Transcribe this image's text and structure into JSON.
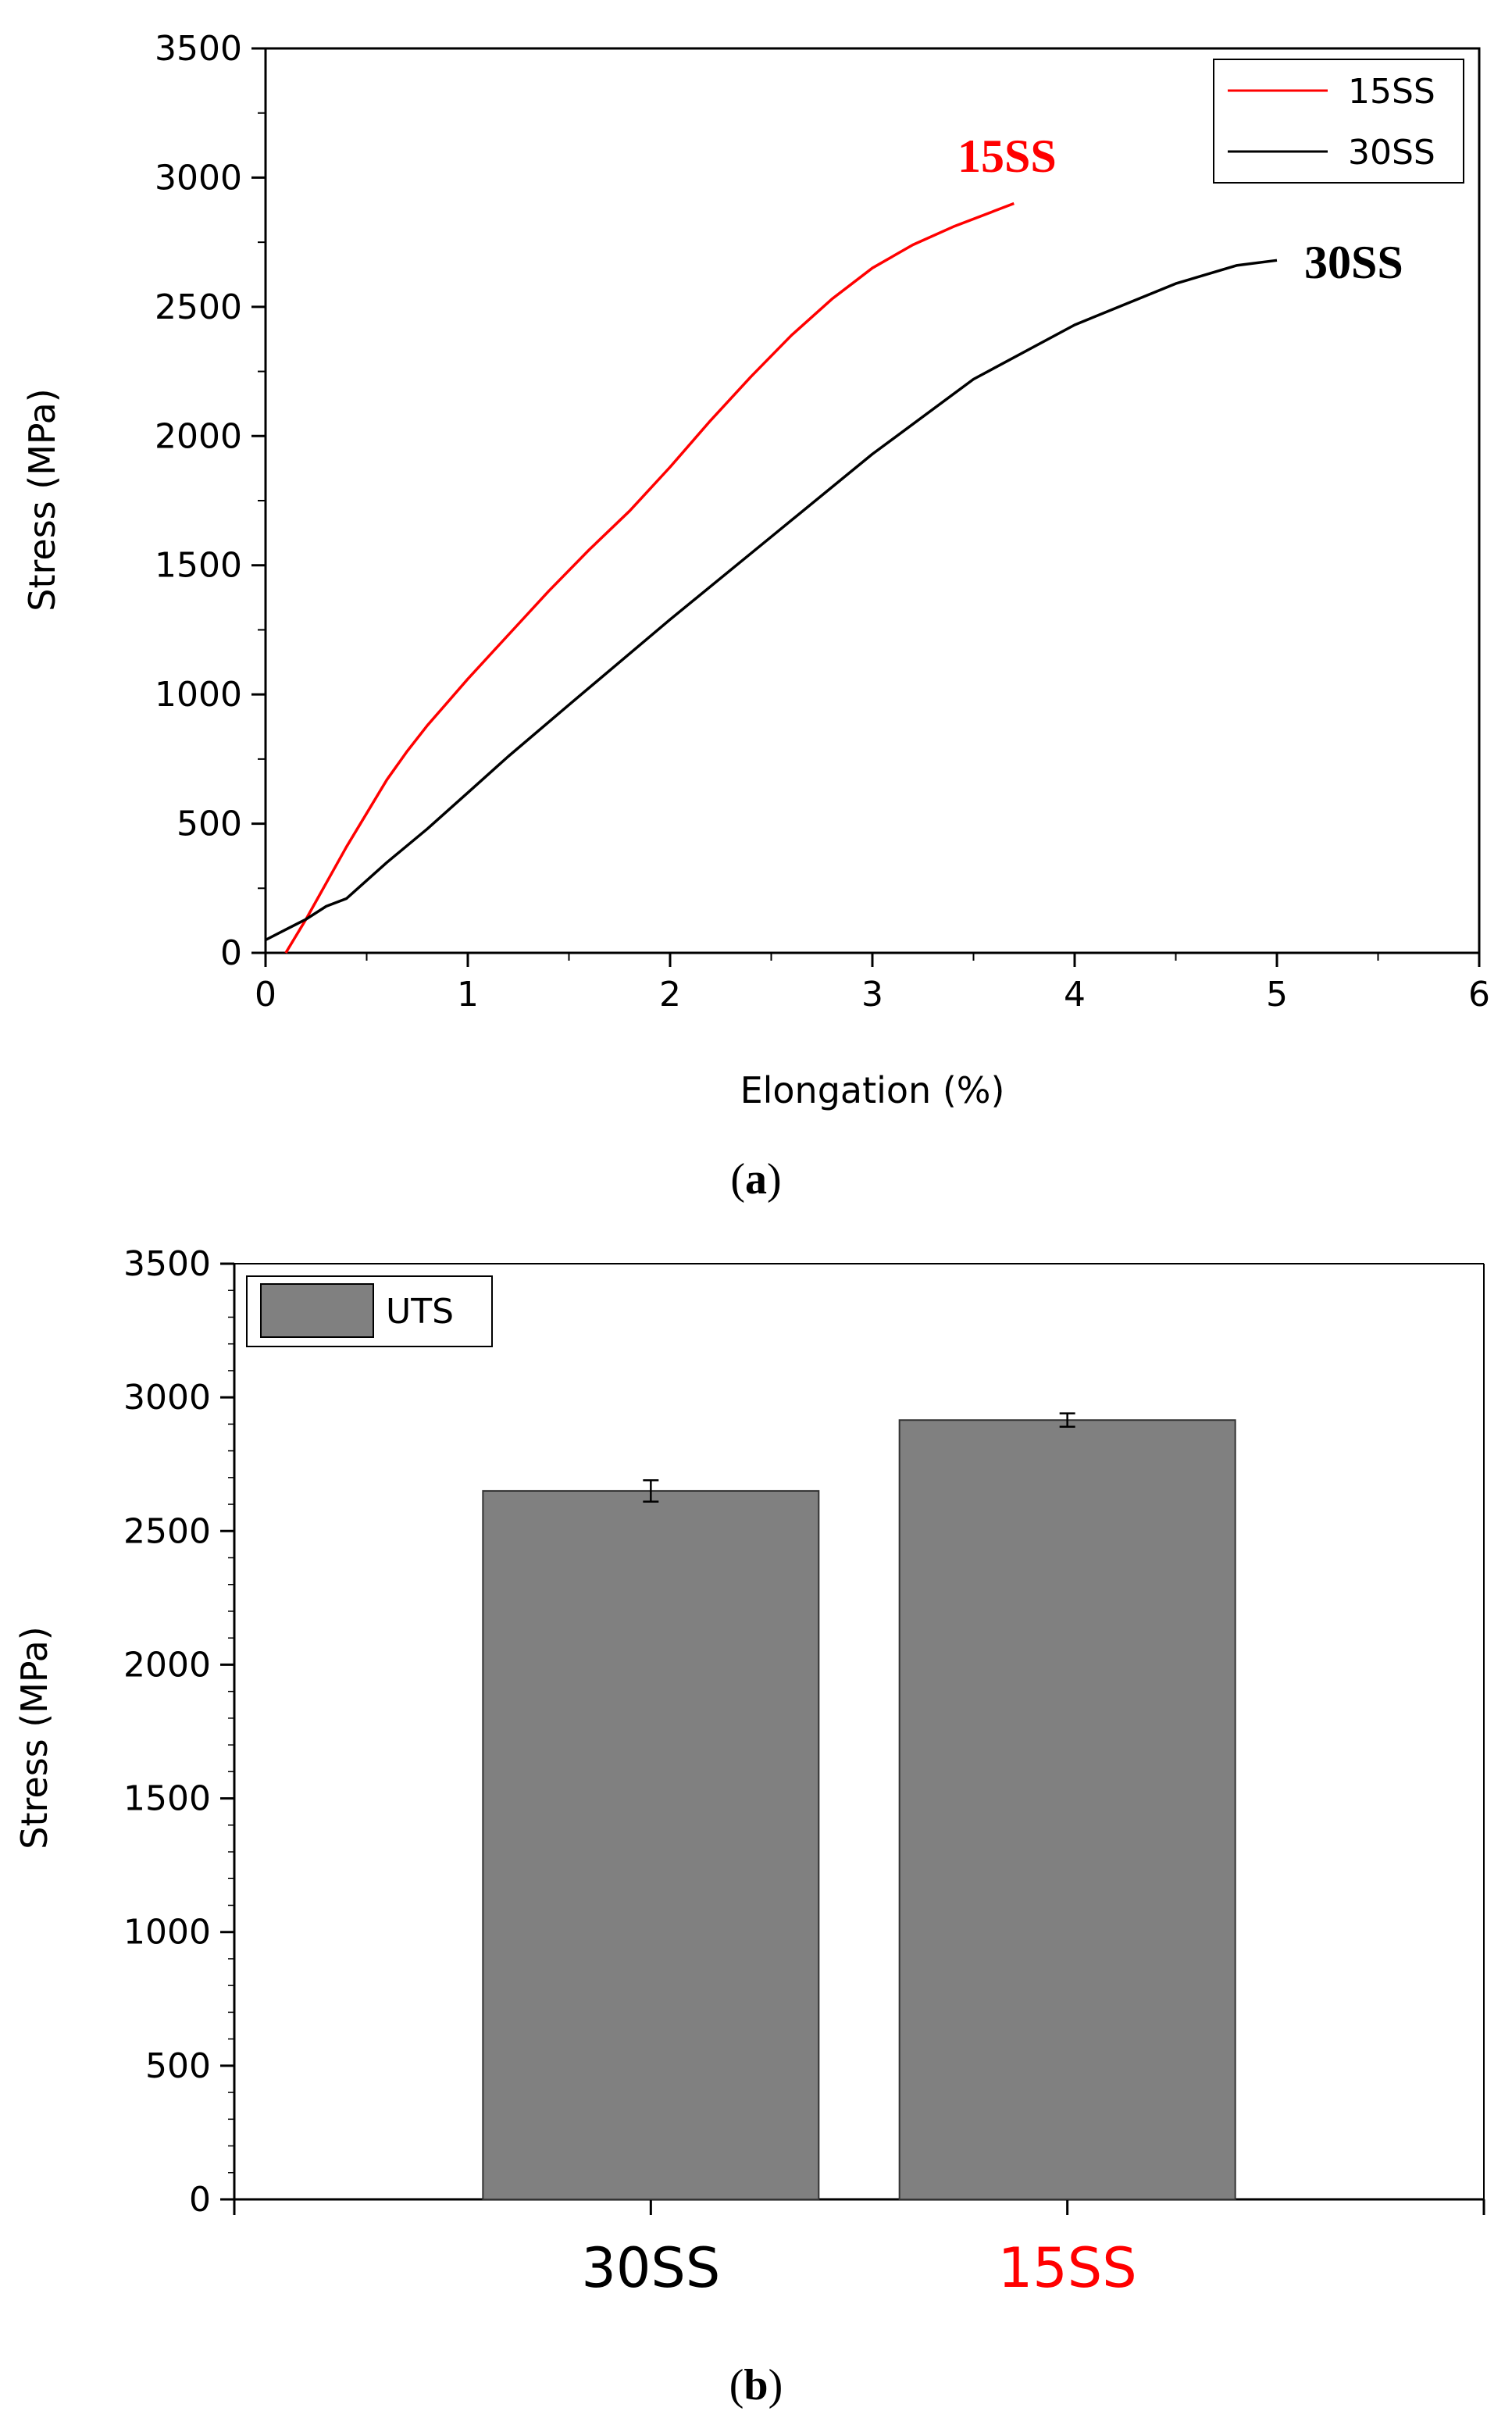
{
  "chart_data": [
    {
      "panel": "a",
      "type": "line",
      "xlabel": "Elongation (%)",
      "ylabel": "Stress (MPa)",
      "xlim": [
        0,
        6
      ],
      "ylim": [
        0,
        3500
      ],
      "x_ticks": [
        "0",
        "1",
        "2",
        "3",
        "4",
        "5",
        "6"
      ],
      "y_ticks": [
        "0",
        "500",
        "1000",
        "1500",
        "2000",
        "2500",
        "3000",
        "3500"
      ],
      "legend_position": "top-right",
      "series": [
        {
          "name": "15SS",
          "color": "#ff0000",
          "x": [
            0.1,
            0.2,
            0.3,
            0.4,
            0.5,
            0.6,
            0.7,
            0.8,
            0.9,
            1.0,
            1.2,
            1.4,
            1.6,
            1.8,
            2.0,
            2.2,
            2.4,
            2.6,
            2.8,
            3.0,
            3.2,
            3.4,
            3.6,
            3.7
          ],
          "y": [
            0,
            130,
            270,
            410,
            540,
            670,
            780,
            880,
            970,
            1060,
            1230,
            1400,
            1560,
            1710,
            1880,
            2060,
            2230,
            2390,
            2530,
            2650,
            2740,
            2810,
            2870,
            2900
          ]
        },
        {
          "name": "30SS",
          "color": "#000000",
          "x": [
            0,
            0.1,
            0.2,
            0.3,
            0.4,
            0.6,
            0.8,
            1.0,
            1.2,
            1.5,
            2.0,
            2.5,
            3.0,
            3.5,
            4.0,
            4.5,
            4.8,
            5.0
          ],
          "y": [
            50,
            90,
            130,
            180,
            210,
            350,
            480,
            620,
            760,
            960,
            1290,
            1610,
            1930,
            2220,
            2430,
            2590,
            2660,
            2680
          ]
        }
      ],
      "annotations": [
        {
          "text": "15SS",
          "color": "#ff0000"
        },
        {
          "text": "30SS",
          "color": "#000000"
        }
      ],
      "caption_label": "a"
    },
    {
      "panel": "b",
      "type": "bar",
      "ylabel": "Stress (MPa)",
      "ylim": [
        0,
        3500
      ],
      "y_ticks": [
        "0",
        "500",
        "1000",
        "1500",
        "2000",
        "2500",
        "3000",
        "3500"
      ],
      "categories": [
        "30SS",
        "15SS"
      ],
      "category_colors": [
        "#000000",
        "#ff0000"
      ],
      "bar_color": "#808080",
      "series": [
        {
          "name": "UTS",
          "values": [
            2650,
            2915
          ],
          "errors": [
            40,
            25
          ]
        }
      ],
      "legend_position": "top-left",
      "caption_label": "b"
    }
  ]
}
